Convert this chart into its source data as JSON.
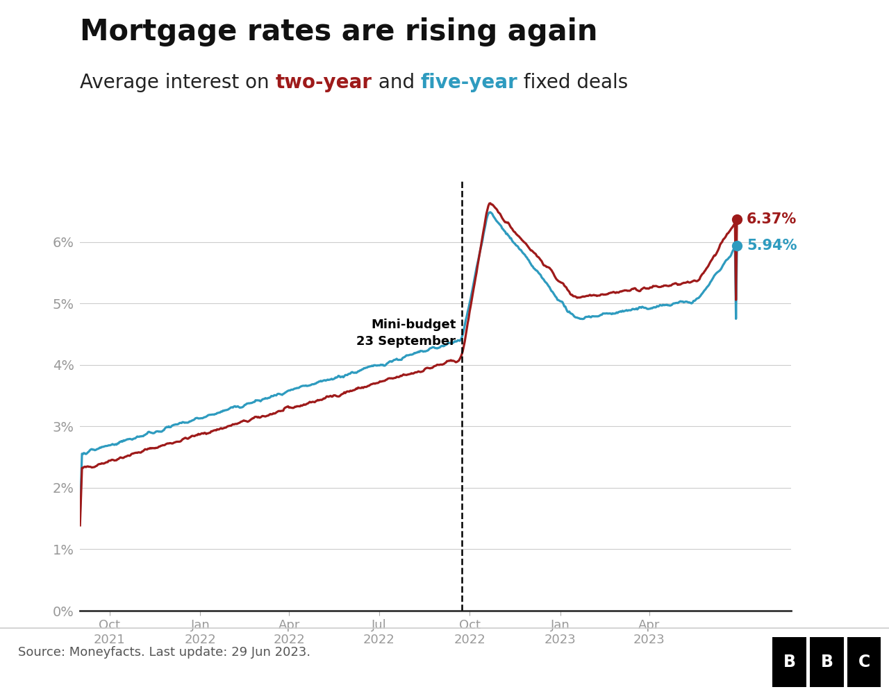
{
  "title": "Mortgage rates are rising again",
  "subtitle_two_year": "two-year",
  "subtitle_five_year": "five-year",
  "two_year_color": "#9e1a1a",
  "five_year_color": "#2e9bbf",
  "annotation_text": "Mini-budget\n23 September",
  "two_year_final": 6.37,
  "five_year_final": 5.94,
  "source_text": "Source: Moneyfacts. Last update: 29 Jun 2023.",
  "background_color": "#ffffff",
  "grid_color": "#cccccc",
  "tick_label_color": "#999999"
}
